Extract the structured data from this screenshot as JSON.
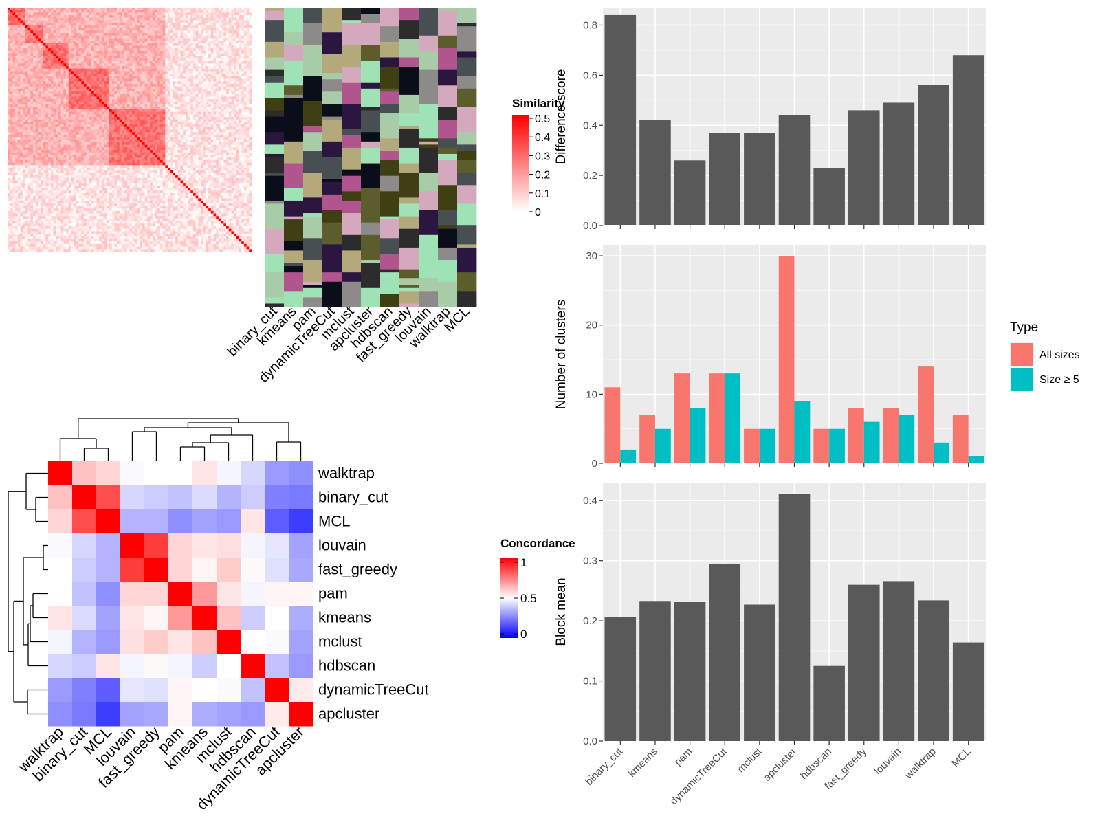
{
  "chart_data": [
    {
      "type": "heatmap",
      "id": "similarity_heatmap",
      "legend_title": "Similarity",
      "legend_ticks": [
        "0.5",
        "0.4",
        "0.3",
        "0.2",
        "0.1",
        "0"
      ],
      "color_scale": [
        "#ffffff",
        "#ff0000"
      ],
      "range": [
        0,
        0.5
      ]
    },
    {
      "type": "heatmap",
      "id": "cluster_assignment",
      "columns": [
        "binary_cut",
        "kmeans",
        "pam",
        "dynamicTreeCut",
        "mclust",
        "apcluster",
        "hdbscan",
        "fast_greedy",
        "louvain",
        "walktrap",
        "MCL"
      ]
    },
    {
      "type": "heatmap",
      "id": "concordance_heatmap",
      "legend_title": "Concordance",
      "legend_ticks": [
        "1",
        "0.5",
        "0"
      ],
      "color_scale": [
        "#0000ff",
        "#ffffff",
        "#ff0000"
      ],
      "range": [
        0,
        1
      ],
      "rows": [
        "walktrap",
        "binary_cut",
        "MCL",
        "louvain",
        "fast_greedy",
        "pam",
        "kmeans",
        "mclust",
        "hdbscan",
        "dynamicTreeCut",
        "apcluster"
      ],
      "columns": [
        "walktrap",
        "binary_cut",
        "MCL",
        "louvain",
        "fast_greedy",
        "pam",
        "kmeans",
        "mclust",
        "hdbscan",
        "dynamicTreeCut",
        "apcluster"
      ],
      "values": [
        [
          1.0,
          0.62,
          0.58,
          0.49,
          0.5,
          0.5,
          0.55,
          0.48,
          0.42,
          0.3,
          0.28
        ],
        [
          0.62,
          1.0,
          0.85,
          0.42,
          0.4,
          0.38,
          0.43,
          0.35,
          0.4,
          0.25,
          0.24
        ],
        [
          0.58,
          0.85,
          1.0,
          0.35,
          0.35,
          0.28,
          0.32,
          0.3,
          0.55,
          0.18,
          0.12
        ],
        [
          0.49,
          0.42,
          0.35,
          1.0,
          0.88,
          0.58,
          0.55,
          0.56,
          0.48,
          0.45,
          0.32
        ],
        [
          0.5,
          0.4,
          0.35,
          0.88,
          1.0,
          0.58,
          0.52,
          0.6,
          0.51,
          0.44,
          0.33
        ],
        [
          0.5,
          0.38,
          0.28,
          0.58,
          0.58,
          1.0,
          0.7,
          0.55,
          0.48,
          0.52,
          0.52
        ],
        [
          0.55,
          0.43,
          0.32,
          0.55,
          0.52,
          0.7,
          1.0,
          0.62,
          0.4,
          0.5,
          0.34
        ],
        [
          0.48,
          0.35,
          0.3,
          0.56,
          0.6,
          0.55,
          0.62,
          1.0,
          0.5,
          0.49,
          0.32
        ],
        [
          0.42,
          0.4,
          0.55,
          0.48,
          0.51,
          0.48,
          0.4,
          0.5,
          1.0,
          0.38,
          0.3
        ],
        [
          0.3,
          0.25,
          0.18,
          0.45,
          0.44,
          0.52,
          0.5,
          0.49,
          0.38,
          1.0,
          0.54
        ],
        [
          0.28,
          0.24,
          0.12,
          0.32,
          0.33,
          0.52,
          0.34,
          0.32,
          0.3,
          0.54,
          1.0
        ]
      ]
    },
    {
      "type": "bar",
      "id": "difference_score",
      "ylabel": "Difference score",
      "categories": [
        "binary_cut",
        "kmeans",
        "pam",
        "dynamicTreeCut",
        "mclust",
        "apcluster",
        "hdbscan",
        "fast_greedy",
        "louvain",
        "walktrap",
        "MCL"
      ],
      "values": [
        0.84,
        0.42,
        0.26,
        0.37,
        0.37,
        0.44,
        0.23,
        0.46,
        0.49,
        0.56,
        0.68
      ],
      "ylim": [
        0,
        0.87
      ],
      "yticks": [
        "0.0",
        "0.2",
        "0.4",
        "0.6",
        "0.8"
      ],
      "color": "#595959"
    },
    {
      "type": "bar",
      "id": "number_of_clusters",
      "ylabel": "Number of clusters",
      "categories": [
        "binary_cut",
        "kmeans",
        "pam",
        "dynamicTreeCut",
        "mclust",
        "apcluster",
        "hdbscan",
        "fast_greedy",
        "louvain",
        "walktrap",
        "MCL"
      ],
      "series": [
        {
          "name": "All sizes",
          "color": "#f8766d",
          "values": [
            11,
            7,
            13,
            13,
            5,
            30,
            5,
            8,
            8,
            14,
            7
          ]
        },
        {
          "name": "Size ≥ 5",
          "color": "#00bfc4",
          "values": [
            2,
            5,
            8,
            13,
            5,
            9,
            5,
            6,
            7,
            3,
            1
          ]
        }
      ],
      "ylim": [
        0,
        31.5
      ],
      "yticks": [
        "0",
        "10",
        "20",
        "30"
      ],
      "legend_title": "Type",
      "legend_position": "right"
    },
    {
      "type": "bar",
      "id": "block_mean",
      "ylabel": "Block mean",
      "categories": [
        "binary_cut",
        "kmeans",
        "pam",
        "dynamicTreeCut",
        "mclust",
        "apcluster",
        "hdbscan",
        "fast_greedy",
        "louvain",
        "walktrap",
        "MCL"
      ],
      "values": [
        0.206,
        0.233,
        0.232,
        0.295,
        0.227,
        0.411,
        0.125,
        0.26,
        0.266,
        0.234,
        0.164
      ],
      "ylim": [
        0,
        0.43
      ],
      "yticks": [
        "0.0",
        "0.1",
        "0.2",
        "0.3",
        "0.4"
      ],
      "color": "#595959"
    }
  ]
}
